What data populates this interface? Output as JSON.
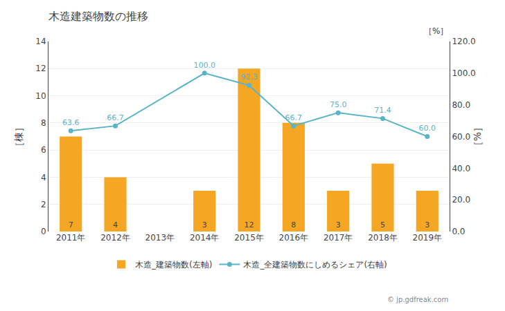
{
  "chart_data": {
    "type": "bar",
    "title": "木造建築物数の推移",
    "categories": [
      "2011年",
      "2012年",
      "2013年",
      "2014年",
      "2015年",
      "2016年",
      "2017年",
      "2018年",
      "2019年"
    ],
    "series": [
      {
        "name": "木造_建築物数(左軸)",
        "type": "bar",
        "color": "#f5a623",
        "values": [
          7,
          4,
          0,
          3,
          12,
          8,
          3,
          5,
          3
        ],
        "value_labels": [
          "7",
          "4",
          null,
          "3",
          "12",
          "8",
          "3",
          "5",
          "3"
        ]
      },
      {
        "name": "木造_全建築物数にしめるシェア(右軸)",
        "type": "line",
        "axis": "y2",
        "color": "#5ab4c8",
        "marker": "circle",
        "values": [
          63.6,
          66.7,
          null,
          100.0,
          92.3,
          66.7,
          75.0,
          71.4,
          60.0
        ],
        "value_labels": [
          "63.6",
          "66.7",
          null,
          "100.0",
          "92.3",
          "66.7",
          "75.0",
          "71.4",
          "60.0"
        ]
      }
    ],
    "ylabel": "［棟］",
    "y2label": "［%］",
    "ylim": [
      0,
      14
    ],
    "yticks": [
      0,
      2,
      4,
      6,
      8,
      10,
      12,
      14
    ],
    "y2lim": [
      0.0,
      120.0
    ],
    "y2ticks": [
      {
        "value": 0,
        "label": "0.0"
      },
      {
        "value": 20,
        "label": "20.0"
      },
      {
        "value": 40,
        "label": "40.0"
      },
      {
        "value": 60,
        "label": "60.0"
      },
      {
        "value": 80,
        "label": "80.0"
      },
      {
        "value": 100,
        "label": "100.0"
      },
      {
        "value": 120,
        "label": "120.0"
      }
    ],
    "grid": true,
    "legend": "bottom",
    "data_labels": true,
    "annotations": [
      "［%］",
      "© jp.gdfreak.com"
    ]
  }
}
